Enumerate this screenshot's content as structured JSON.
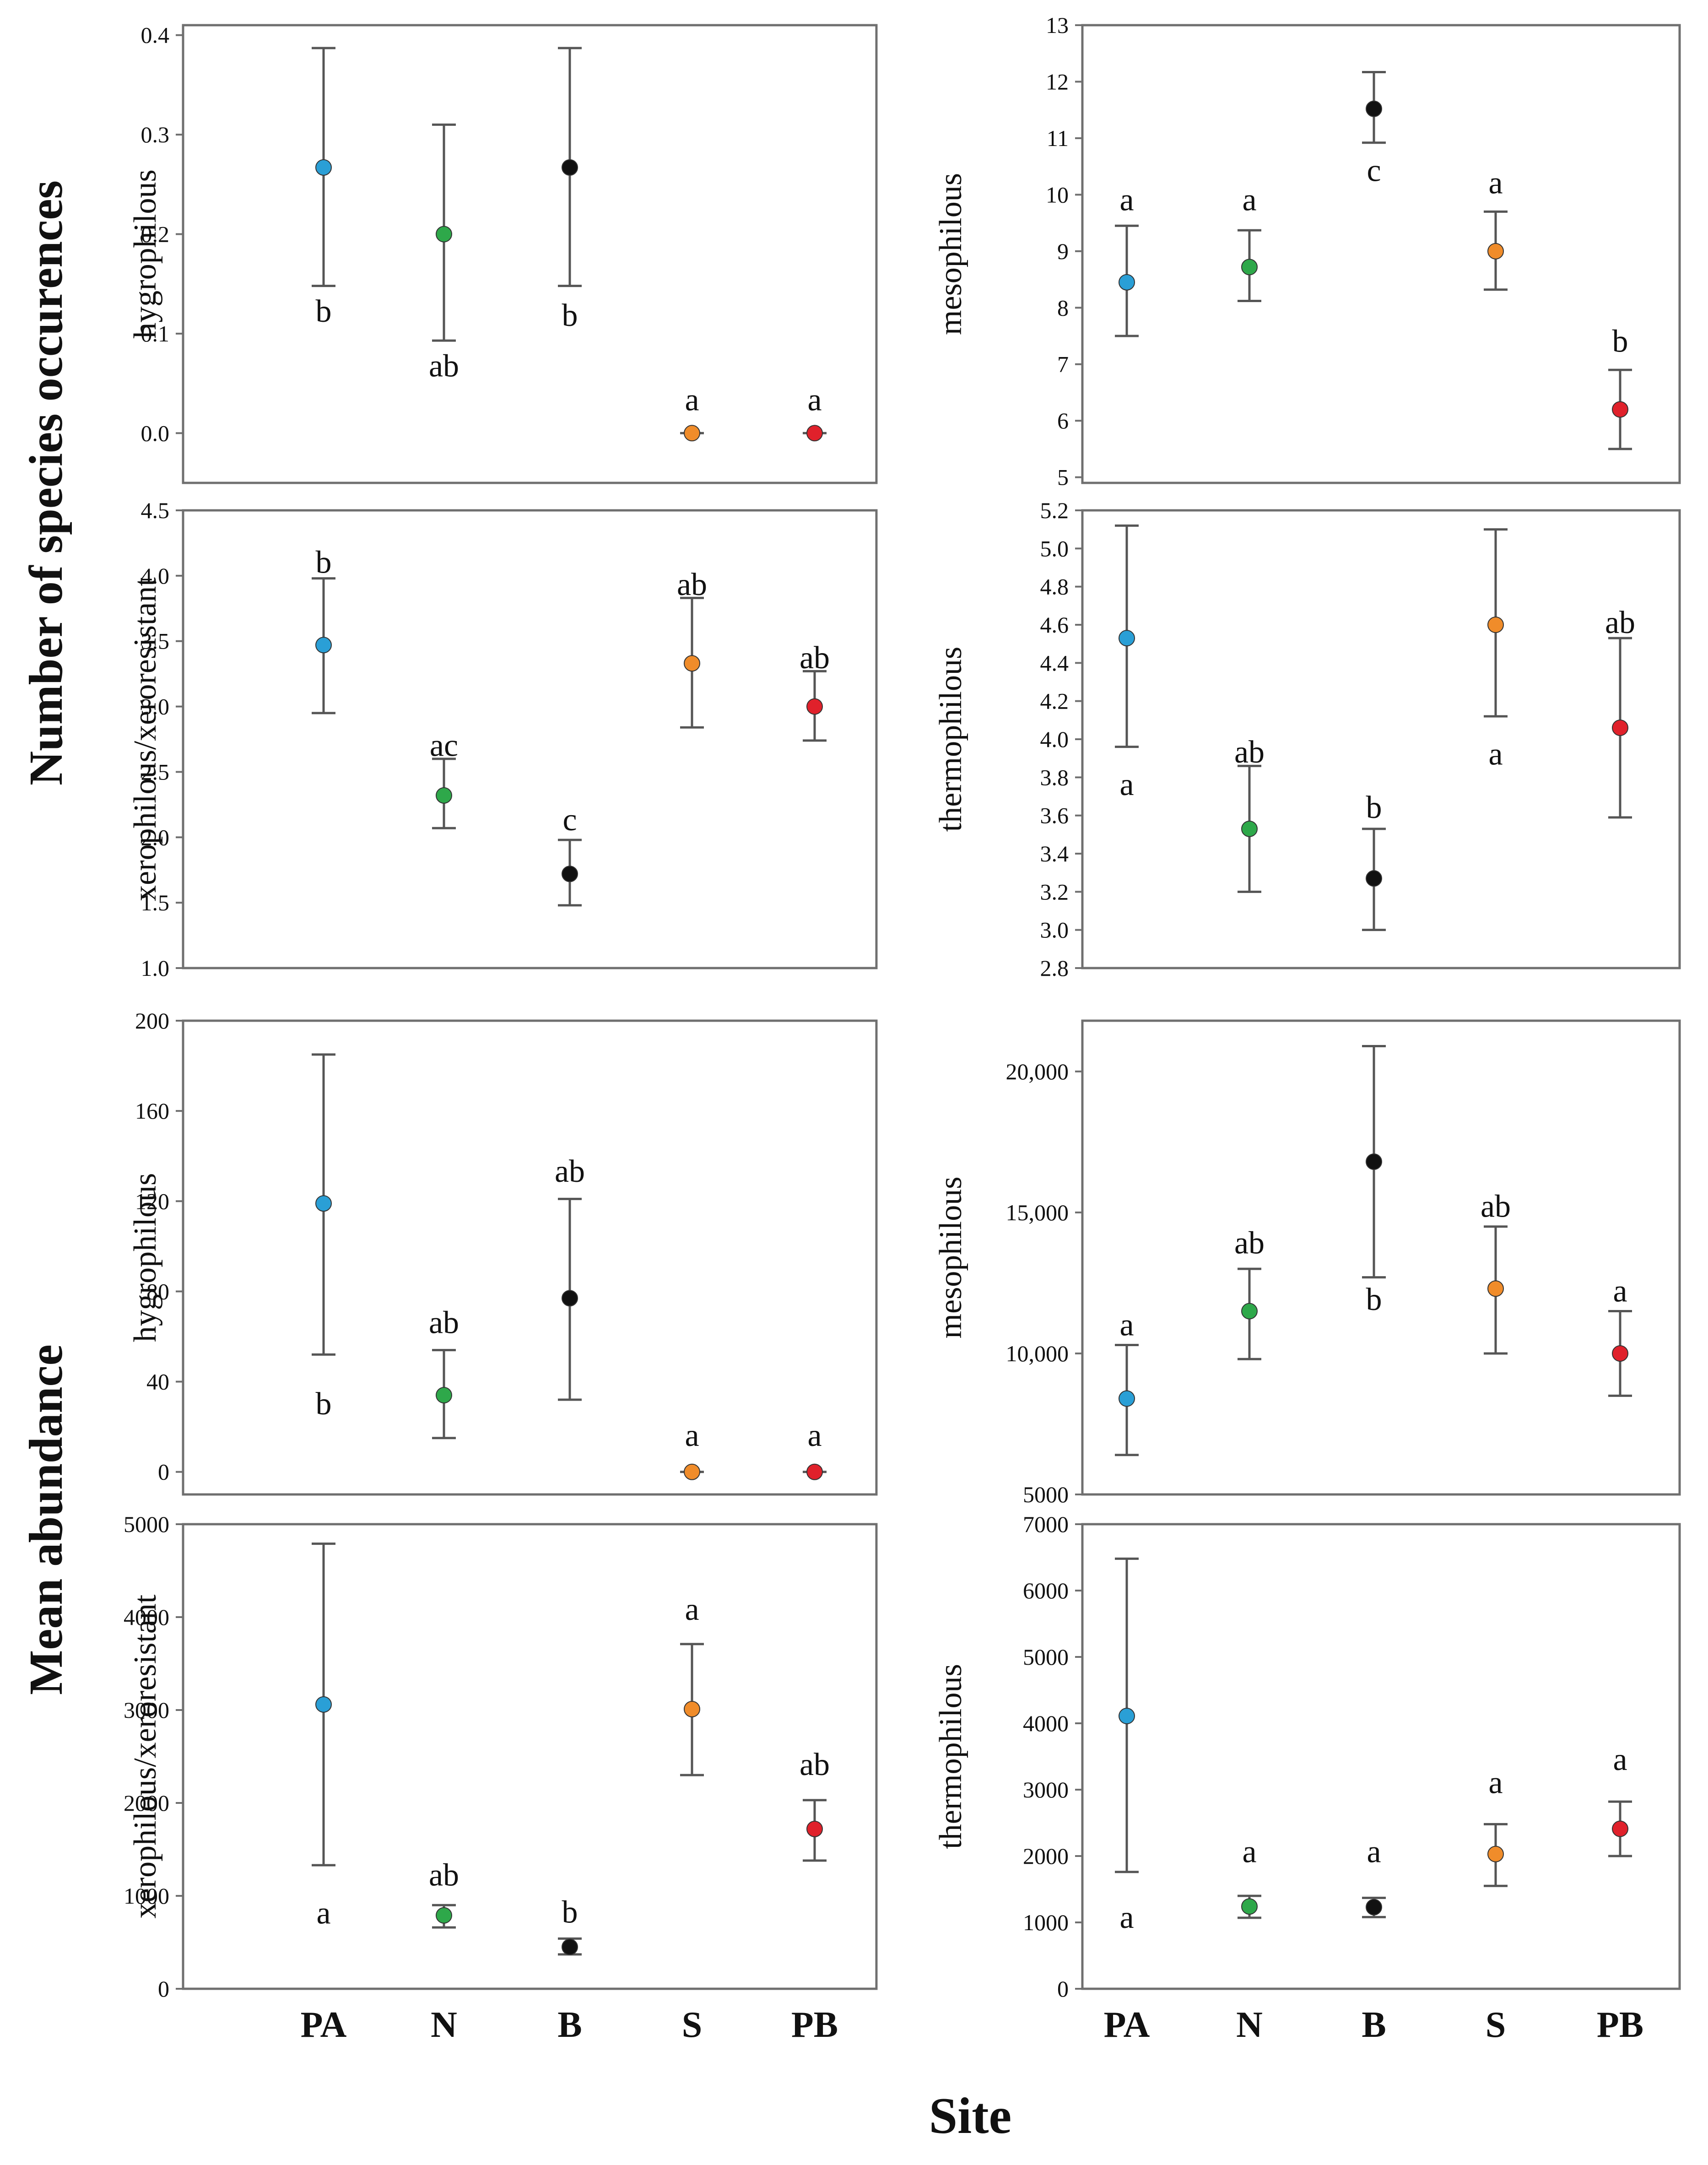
{
  "figure": {
    "group_labels": [
      "Number of species occurences",
      "Mean abundance"
    ],
    "xlabel": "Site",
    "sites": [
      "PA",
      "N",
      "B",
      "S",
      "PB"
    ],
    "colors": {
      "PA": "#2a9fd6",
      "N": "#2ea84a",
      "B": "#111111",
      "S": "#f08c2a",
      "PB": "#e0212b",
      "axis": "#6f6f6f",
      "errorbar": "#555555",
      "text": "#111111"
    }
  },
  "chart_data": [
    {
      "type": "scatter",
      "group": "Number of species occurences",
      "ylabel": "hygrophilous",
      "ylim": [
        -0.05,
        0.41
      ],
      "yticks": [
        0.0,
        0.1,
        0.2,
        0.3,
        0.4
      ],
      "ytick_labels": [
        "0.0",
        "0.1",
        "0.2",
        "0.3",
        "0.4"
      ],
      "categories": [
        "PA",
        "N",
        "B",
        "S",
        "PB"
      ],
      "values": [
        0.267,
        0.2,
        0.267,
        0.0,
        0.0
      ],
      "err_low": [
        0.148,
        0.093,
        0.148,
        0.0,
        0.0
      ],
      "err_high": [
        0.387,
        0.31,
        0.387,
        0.0,
        0.0
      ],
      "letters": [
        {
          "text": "b",
          "value": 0.122
        },
        {
          "text": "ab",
          "value": 0.067
        },
        {
          "text": "b",
          "value": 0.118
        },
        {
          "text": "a",
          "value": 0.033
        },
        {
          "text": "a",
          "value": 0.033
        }
      ]
    },
    {
      "type": "scatter",
      "group": "Number of species occurences",
      "ylabel": "mesophilous",
      "ylim": [
        4.9,
        13.0
      ],
      "yticks": [
        5,
        6,
        7,
        8,
        9,
        10,
        11,
        12,
        13
      ],
      "ytick_labels": [
        "5",
        "6",
        "7",
        "8",
        "9",
        "10",
        "11",
        "12",
        "13"
      ],
      "categories": [
        "PA",
        "N",
        "B",
        "S",
        "PB"
      ],
      "values": [
        8.45,
        8.72,
        11.52,
        9.0,
        6.2
      ],
      "err_low": [
        7.5,
        8.12,
        10.92,
        8.32,
        5.5
      ],
      "err_high": [
        9.45,
        9.37,
        12.17,
        9.7,
        6.9
      ],
      "letters": [
        {
          "text": "a",
          "value": 9.9
        },
        {
          "text": "a",
          "value": 9.9
        },
        {
          "text": "c",
          "value": 10.42
        },
        {
          "text": "a",
          "value": 10.2
        },
        {
          "text": "b",
          "value": 7.4
        }
      ]
    },
    {
      "type": "scatter",
      "group": "Number of species occurences",
      "ylabel": "xerophilous/xeroresistant",
      "ylim": [
        1.0,
        4.5
      ],
      "yticks": [
        1.0,
        1.5,
        2.0,
        2.5,
        3.0,
        3.5,
        4.0,
        4.5
      ],
      "ytick_labels": [
        "1.0",
        "1.5",
        "2.0",
        "2.5",
        "3.0",
        "3.5",
        "4.0",
        "4.5"
      ],
      "categories": [
        "PA",
        "N",
        "B",
        "S",
        "PB"
      ],
      "values": [
        3.47,
        2.32,
        1.72,
        3.33,
        3.0
      ],
      "err_low": [
        2.95,
        2.07,
        1.48,
        2.84,
        2.74
      ],
      "err_high": [
        3.98,
        2.6,
        1.98,
        3.83,
        3.27
      ],
      "letters": [
        {
          "text": "b",
          "value": 4.1
        },
        {
          "text": "ac",
          "value": 2.7
        },
        {
          "text": "c",
          "value": 2.13
        },
        {
          "text": "ab",
          "value": 3.93
        },
        {
          "text": "ab",
          "value": 3.37
        }
      ]
    },
    {
      "type": "scatter",
      "group": "Number of species occurences",
      "ylabel": "thermophilous",
      "ylim": [
        2.8,
        5.2
      ],
      "yticks": [
        2.8,
        3.0,
        3.2,
        3.4,
        3.6,
        3.8,
        4.0,
        4.2,
        4.4,
        4.6,
        4.8,
        5.0,
        5.2
      ],
      "ytick_labels": [
        "2.8",
        "3.0",
        "3.2",
        "3.4",
        "3.6",
        "3.8",
        "4.0",
        "4.2",
        "4.4",
        "4.6",
        "4.8",
        "5.0",
        "5.2"
      ],
      "categories": [
        "PA",
        "N",
        "B",
        "S",
        "PB"
      ],
      "values": [
        4.53,
        3.53,
        3.27,
        4.6,
        4.06
      ],
      "err_low": [
        3.96,
        3.2,
        3.0,
        4.12,
        3.59
      ],
      "err_high": [
        5.12,
        3.86,
        3.53,
        5.1,
        4.53
      ],
      "letters": [
        {
          "text": "a",
          "value": 3.76
        },
        {
          "text": "ab",
          "value": 3.93
        },
        {
          "text": "b",
          "value": 3.64
        },
        {
          "text": "a",
          "value": 3.92
        },
        {
          "text": "ab",
          "value": 4.61
        }
      ]
    },
    {
      "type": "scatter",
      "group": "Mean abundance",
      "ylabel": "hygrophilous",
      "ylim": [
        -10,
        200
      ],
      "yticks": [
        0,
        40,
        80,
        120,
        160,
        200
      ],
      "ytick_labels": [
        "0",
        "40",
        "80",
        "120",
        "160",
        "200"
      ],
      "categories": [
        "PA",
        "N",
        "B",
        "S",
        "PB"
      ],
      "values": [
        119,
        34,
        77,
        0,
        0
      ],
      "err_low": [
        52,
        15,
        32,
        0,
        0
      ],
      "err_high": [
        185,
        54,
        121,
        0,
        0
      ],
      "letters": [
        {
          "text": "b",
          "value": 30
        },
        {
          "text": "ab",
          "value": 66
        },
        {
          "text": "ab",
          "value": 133
        },
        {
          "text": "a",
          "value": 16
        },
        {
          "text": "a",
          "value": 16
        }
      ]
    },
    {
      "type": "scatter",
      "group": "Mean abundance",
      "ylabel": "mesophilous",
      "ylim": [
        5000,
        21800
      ],
      "yticks": [
        5000,
        10000,
        15000,
        20000
      ],
      "ytick_labels": [
        "5000",
        "10,000",
        "15,000",
        "20,000"
      ],
      "categories": [
        "PA",
        "N",
        "B",
        "S",
        "PB"
      ],
      "values": [
        8400,
        11500,
        16800,
        12300,
        10000
      ],
      "err_low": [
        6400,
        9800,
        12700,
        10000,
        8500
      ],
      "err_high": [
        10300,
        13000,
        20900,
        14500,
        11500
      ],
      "letters": [
        {
          "text": "a",
          "value": 11000
        },
        {
          "text": "ab",
          "value": 13900
        },
        {
          "text": "b",
          "value": 11900
        },
        {
          "text": "ab",
          "value": 15200
        },
        {
          "text": "a",
          "value": 12200
        }
      ]
    },
    {
      "type": "scatter",
      "group": "Mean abundance",
      "ylabel": "xerophilous/xeroresistant",
      "ylim": [
        0,
        5000
      ],
      "yticks": [
        0,
        1000,
        2000,
        3000,
        4000,
        5000
      ],
      "ytick_labels": [
        "0",
        "1000",
        "2000",
        "3000",
        "4000",
        "5000"
      ],
      "categories": [
        "PA",
        "N",
        "B",
        "S",
        "PB"
      ],
      "values": [
        3060,
        790,
        450,
        3010,
        1720
      ],
      "err_low": [
        1330,
        660,
        370,
        2300,
        1380
      ],
      "err_high": [
        4790,
        900,
        540,
        3710,
        2030
      ],
      "letters": [
        {
          "text": "a",
          "value": 810
        },
        {
          "text": "ab",
          "value": 1220
        },
        {
          "text": "b",
          "value": 820
        },
        {
          "text": "a",
          "value": 4080
        },
        {
          "text": "ab",
          "value": 2410
        }
      ]
    },
    {
      "type": "scatter",
      "group": "Mean abundance",
      "ylabel": "thermophilous",
      "ylim": [
        0,
        7000
      ],
      "yticks": [
        0,
        1000,
        2000,
        3000,
        4000,
        5000,
        6000,
        7000
      ],
      "ytick_labels": [
        "0",
        "1000",
        "2000",
        "3000",
        "4000",
        "5000",
        "6000",
        "7000"
      ],
      "categories": [
        "PA",
        "N",
        "B",
        "S",
        "PB"
      ],
      "values": [
        4110,
        1240,
        1230,
        2030,
        2410
      ],
      "err_low": [
        1760,
        1070,
        1080,
        1550,
        2000
      ],
      "err_high": [
        6480,
        1400,
        1370,
        2480,
        2820
      ],
      "letters": [
        {
          "text": "a",
          "value": 1070
        },
        {
          "text": "a",
          "value": 2060
        },
        {
          "text": "a",
          "value": 2060
        },
        {
          "text": "a",
          "value": 3100
        },
        {
          "text": "a",
          "value": 3450
        }
      ]
    }
  ]
}
